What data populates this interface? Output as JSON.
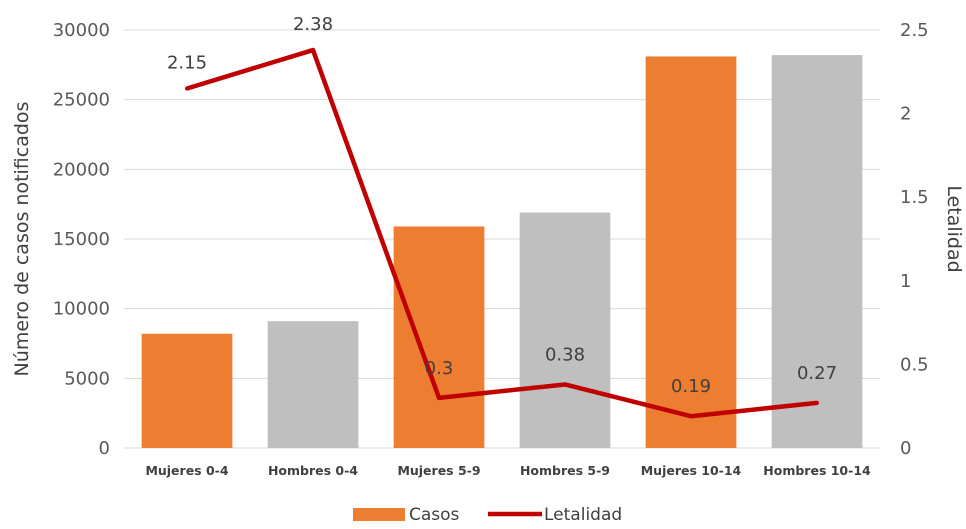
{
  "chart_data": {
    "type": "bar+line",
    "categories": [
      "Mujeres 0-4",
      "Hombres 0-4",
      "Mujeres 5-9",
      "Hombres 5-9",
      "Mujeres 10-14",
      "Hombres 10-14"
    ],
    "bar_values": [
      8200,
      9100,
      15900,
      16900,
      28100,
      28200
    ],
    "bar_colors": [
      "#ED7D31",
      "#BFBFBF",
      "#ED7D31",
      "#BFBFBF",
      "#ED7D31",
      "#BFBFBF"
    ],
    "line_values": [
      2.15,
      2.38,
      0.3,
      0.38,
      0.19,
      0.27
    ],
    "line_labels": [
      "2.15",
      "2.38",
      "0.3",
      "0.38",
      "0.19",
      "0.27"
    ],
    "line_color": "#C00000",
    "ylabel": "Número de casos notificados",
    "y2label": "Letalidad",
    "ylim": [
      0,
      30000
    ],
    "y_ticks": [
      0,
      5000,
      10000,
      15000,
      20000,
      25000,
      30000
    ],
    "y2lim": [
      0,
      2.5
    ],
    "y2_ticks": [
      "0",
      "0.5",
      "1",
      "1.5",
      "2",
      "2.5"
    ],
    "legend": [
      {
        "name": "Casos",
        "type": "bar",
        "color": "#ED7D31"
      },
      {
        "name": "Letalidad",
        "type": "line",
        "color": "#C00000"
      }
    ],
    "legend_position": "bottom",
    "grid": true
  }
}
